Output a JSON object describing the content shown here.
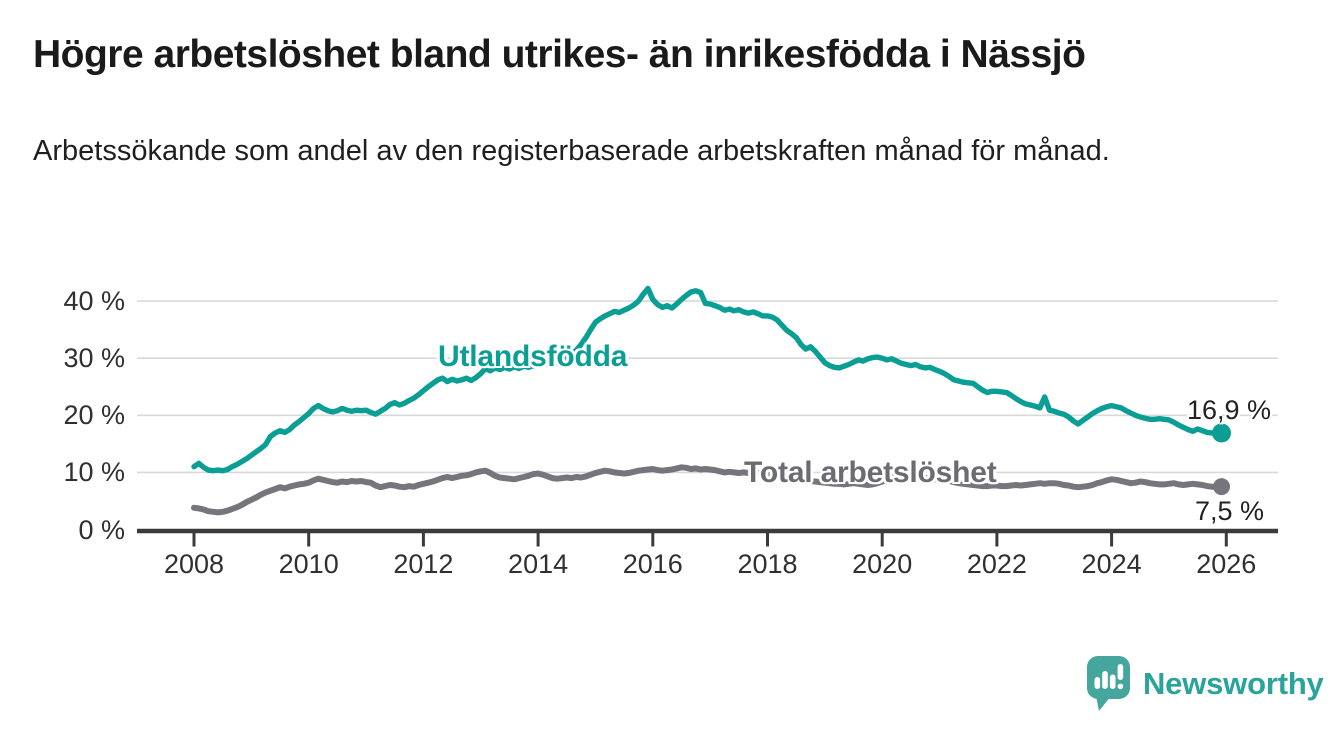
{
  "header": {
    "title": "Högre arbetslöshet bland utrikes- än inrikesfödda i Nässjö",
    "subtitle": "Arbetssökande som andel av den registerbaserade arbetskraften månad för månad."
  },
  "chart_data": {
    "type": "line",
    "title": "Högre arbetslöshet bland utrikes- än inrikesfödda i Nässjö",
    "subtitle": "Arbetssökande som andel av den registerbaserade arbetskraften månad för månad.",
    "frequency": "monthly",
    "x_start_year": 2008,
    "x_end_year": 2025.92,
    "xlim": [
      2007.0,
      2026.9
    ],
    "ylim": [
      0,
      44
    ],
    "grid": "horizontal",
    "x_axis_ticks": [
      "2008",
      "2010",
      "2012",
      "2014",
      "2016",
      "2018",
      "2020",
      "2022",
      "2024",
      "2026"
    ],
    "x_axis_tick_years": [
      2008,
      2010,
      2012,
      2014,
      2016,
      2018,
      2020,
      2022,
      2024,
      2026
    ],
    "y_axis_ticks": [
      {
        "value": 40,
        "label": "40 %"
      },
      {
        "value": 30,
        "label": "30 %"
      },
      {
        "value": 20,
        "label": "20 %"
      },
      {
        "value": 10,
        "label": "10 %"
      },
      {
        "value": 0,
        "label": "0 %"
      }
    ],
    "series": [
      {
        "name": "Utlandsfödda",
        "color": "#0a9e95",
        "end_label": "16,9 %",
        "end_value": 16.9,
        "values": [
          11.0,
          11.6,
          10.9,
          10.4,
          10.3,
          10.4,
          10.3,
          10.5,
          11.0,
          11.4,
          11.9,
          12.4,
          13.0,
          13.6,
          14.2,
          14.9,
          16.3,
          16.9,
          17.3,
          17.0,
          17.5,
          18.3,
          18.9,
          19.6,
          20.3,
          21.2,
          21.7,
          21.2,
          20.8,
          20.6,
          20.8,
          21.2,
          20.9,
          20.7,
          20.9,
          20.8,
          20.9,
          20.5,
          20.2,
          20.7,
          21.2,
          21.9,
          22.2,
          21.8,
          22.1,
          22.6,
          23.0,
          23.6,
          24.3,
          25.0,
          25.6,
          26.2,
          26.5,
          25.9,
          26.3,
          26.0,
          26.2,
          26.5,
          26.1,
          26.6,
          27.3,
          28.2,
          27.8,
          28.3,
          28.0,
          28.4,
          28.1,
          28.5,
          28.2,
          28.6,
          28.4,
          28.7,
          28.9,
          29.2,
          29.0,
          29.4,
          29.2,
          29.6,
          30.0,
          30.6,
          31.4,
          32.4,
          33.6,
          35.0,
          36.3,
          36.9,
          37.4,
          37.8,
          38.2,
          38.0,
          38.4,
          38.8,
          39.3,
          40.0,
          41.2,
          42.2,
          40.3,
          39.4,
          38.9,
          39.2,
          38.8,
          39.5,
          40.3,
          41.0,
          41.6,
          41.8,
          41.5,
          39.6,
          39.5,
          39.2,
          38.9,
          38.4,
          38.6,
          38.3,
          38.5,
          38.1,
          37.9,
          38.1,
          37.8,
          37.4,
          37.4,
          37.2,
          36.7,
          35.8,
          34.9,
          34.3,
          33.6,
          32.4,
          31.6,
          32.0,
          31.2,
          30.2,
          29.2,
          28.7,
          28.4,
          28.3,
          28.6,
          28.9,
          29.3,
          29.7,
          29.5,
          29.9,
          30.1,
          30.2,
          30.0,
          29.7,
          29.9,
          29.5,
          29.1,
          28.9,
          28.7,
          28.9,
          28.5,
          28.3,
          28.4,
          28.0,
          27.7,
          27.3,
          26.8,
          26.2,
          26.0,
          25.8,
          25.7,
          25.6,
          25.0,
          24.4,
          24.0,
          24.2,
          24.2,
          24.1,
          24.0,
          23.5,
          22.9,
          22.4,
          22.0,
          21.8,
          21.6,
          21.3,
          23.2,
          20.9,
          20.7,
          20.4,
          20.2,
          19.7,
          19.0,
          18.5,
          19.1,
          19.7,
          20.3,
          20.8,
          21.2,
          21.5,
          21.7,
          21.5,
          21.3,
          20.8,
          20.4,
          20.0,
          19.7,
          19.5,
          19.3,
          19.3,
          19.4,
          19.3,
          19.2,
          18.8,
          18.3,
          17.9,
          17.5,
          17.2,
          17.6,
          17.3,
          17.0,
          16.9,
          16.9,
          16.9
        ]
      },
      {
        "name": "Total arbetslöshet",
        "color": "#76757b",
        "end_label": "7,5 %",
        "end_value": 7.5,
        "values": [
          3.8,
          3.7,
          3.5,
          3.2,
          3.1,
          3.0,
          3.1,
          3.3,
          3.6,
          3.9,
          4.3,
          4.8,
          5.2,
          5.6,
          6.1,
          6.5,
          6.8,
          7.1,
          7.4,
          7.2,
          7.5,
          7.7,
          7.9,
          8.0,
          8.2,
          8.6,
          8.9,
          8.7,
          8.5,
          8.3,
          8.2,
          8.4,
          8.3,
          8.5,
          8.4,
          8.5,
          8.3,
          8.2,
          7.7,
          7.4,
          7.6,
          7.8,
          7.7,
          7.5,
          7.4,
          7.6,
          7.5,
          7.8,
          8.0,
          8.2,
          8.4,
          8.7,
          9.0,
          9.2,
          9.0,
          9.2,
          9.4,
          9.5,
          9.7,
          10.0,
          10.2,
          10.3,
          9.9,
          9.4,
          9.1,
          9.0,
          8.9,
          8.8,
          9.0,
          9.2,
          9.4,
          9.7,
          9.8,
          9.6,
          9.3,
          9.0,
          8.9,
          9.0,
          9.1,
          9.0,
          9.2,
          9.1,
          9.3,
          9.6,
          9.9,
          10.1,
          10.3,
          10.2,
          10.0,
          9.9,
          9.8,
          9.9,
          10.1,
          10.3,
          10.4,
          10.5,
          10.6,
          10.4,
          10.3,
          10.4,
          10.5,
          10.7,
          10.9,
          10.8,
          10.6,
          10.7,
          10.5,
          10.6,
          10.5,
          10.4,
          10.2,
          10.0,
          10.1,
          10.0,
          9.9,
          10.0,
          9.9,
          9.8,
          9.9,
          10.0,
          9.8,
          9.6,
          9.4,
          9.2,
          9.0,
          8.9,
          8.8,
          8.7,
          8.6,
          8.5,
          8.4,
          8.3,
          8.2,
          8.1,
          8.0,
          8.0,
          7.9,
          8.0,
          8.1,
          8.0,
          7.9,
          7.8,
          7.9,
          8.1,
          8.4,
          8.7,
          9.2,
          9.6,
          9.8,
          9.9,
          9.7,
          9.5,
          9.3,
          9.1,
          8.9,
          8.8,
          8.7,
          8.6,
          8.5,
          8.3,
          8.1,
          8.0,
          7.9,
          7.8,
          7.7,
          7.6,
          7.6,
          7.7,
          7.7,
          7.6,
          7.6,
          7.7,
          7.8,
          7.7,
          7.8,
          7.9,
          8.0,
          8.1,
          8.0,
          8.1,
          8.1,
          8.0,
          7.8,
          7.7,
          7.5,
          7.4,
          7.5,
          7.6,
          7.8,
          8.1,
          8.3,
          8.6,
          8.8,
          8.7,
          8.5,
          8.3,
          8.1,
          8.2,
          8.4,
          8.3,
          8.1,
          8.0,
          7.9,
          7.9,
          8.0,
          8.1,
          7.9,
          7.8,
          7.9,
          8.0,
          7.9,
          7.8,
          7.6,
          7.5,
          7.5,
          7.5
        ]
      }
    ],
    "colors": {
      "grid": "#d9d9d9",
      "axis": "#3b3b3b",
      "series_label_gray": "#6c6b71"
    }
  },
  "footer": {
    "brand": "Newsworthy",
    "logo_icon": "bar-chart-speech-bubble-icon",
    "brand_color": "#2aa39a",
    "icon_color": "#45a69d"
  }
}
